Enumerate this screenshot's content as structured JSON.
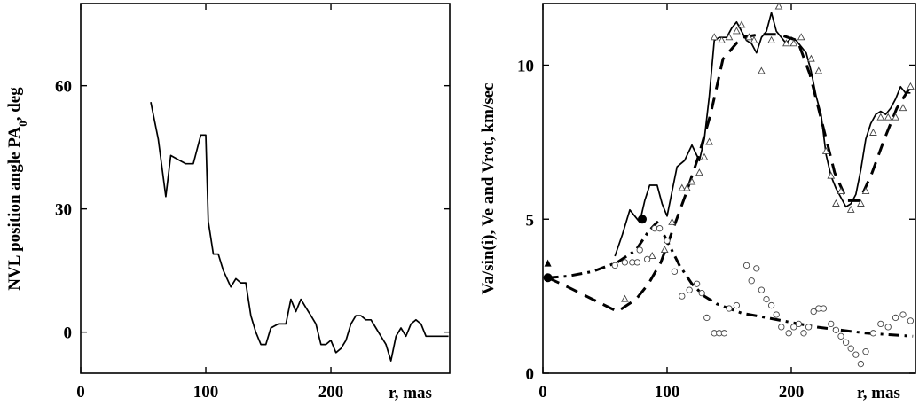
{
  "chart_data": [
    {
      "type": "line",
      "xlabel": "r, mas",
      "ylabel": "NVL position angle PA",
      "ylabel_sub": "0",
      "ylabel_tail": ", deg",
      "xlim": [
        0,
        295
      ],
      "ylim": [
        -10,
        80
      ],
      "xticks": [
        0,
        100,
        200
      ],
      "yticks": [
        0,
        30,
        60
      ],
      "series": [
        {
          "style": "solid",
          "x": [
            56,
            62,
            68,
            72,
            78,
            84,
            90,
            96,
            100,
            102,
            106,
            110,
            114,
            120,
            124,
            128,
            132,
            136,
            140,
            144,
            148,
            152,
            158,
            164,
            168,
            172,
            176,
            180,
            184,
            188,
            192,
            196,
            200,
            204,
            208,
            212,
            216,
            220,
            224,
            228,
            232,
            236,
            240,
            244,
            248,
            252,
            256,
            260,
            264,
            268,
            272,
            276,
            280,
            284,
            288,
            292,
            294
          ],
          "y": [
            56,
            47,
            33,
            43,
            42,
            41,
            41,
            48,
            48,
            27,
            19,
            19,
            15,
            11,
            13,
            12,
            12,
            4,
            0,
            -3,
            -3,
            1,
            2,
            2,
            8,
            5,
            8,
            6,
            4,
            2,
            -3,
            -3,
            -2,
            -5,
            -4,
            -2,
            2,
            4,
            4,
            3,
            3,
            1,
            -1,
            -3,
            -7,
            -1,
            1,
            -1,
            2,
            3,
            2,
            -1,
            -1,
            -1,
            -1,
            -1,
            -1
          ]
        }
      ]
    },
    {
      "type": "scatter",
      "xlabel": "r, mas",
      "ylabel": "Va/sin(i), Ve and Vrot, km/sec",
      "xlim": [
        0,
        300
      ],
      "ylim": [
        0,
        12
      ],
      "xticks": [
        0,
        100,
        200
      ],
      "yticks": [
        0,
        5,
        10
      ],
      "series": [
        {
          "marker": "line-solid",
          "x": [
            58,
            64,
            70,
            78,
            82,
            86,
            92,
            96,
            100,
            104,
            108,
            114,
            120,
            126,
            130,
            134,
            138,
            142,
            148,
            152,
            156,
            160,
            164,
            168,
            172,
            176,
            180,
            184,
            188,
            192,
            196,
            200,
            204,
            208,
            212,
            216,
            220,
            224,
            228,
            232,
            236,
            240,
            244,
            248,
            252,
            256,
            260,
            264,
            268,
            272,
            276,
            280,
            284,
            288,
            292,
            296
          ],
          "y": [
            3.8,
            4.5,
            5.3,
            4.9,
            5.6,
            6.1,
            6.1,
            5.5,
            5.1,
            5.9,
            6.7,
            6.9,
            7.4,
            6.9,
            7.6,
            9.0,
            10.8,
            10.9,
            10.9,
            11.2,
            11.4,
            11.1,
            10.8,
            10.7,
            10.4,
            10.9,
            11.1,
            11.7,
            11.1,
            10.9,
            10.7,
            10.9,
            10.8,
            10.6,
            10.4,
            9.8,
            9.0,
            8.4,
            7.1,
            6.4,
            6.0,
            5.7,
            5.4,
            5.5,
            5.8,
            6.6,
            7.6,
            8.1,
            8.4,
            8.5,
            8.4,
            8.6,
            8.9,
            9.3,
            9.1,
            9.1
          ]
        },
        {
          "marker": "line-dashed",
          "x": [
            4,
            20,
            40,
            60,
            75,
            85,
            95,
            105,
            115,
            125,
            135,
            145,
            160,
            175,
            190,
            205,
            215,
            225,
            235,
            245,
            255,
            265,
            275,
            285,
            296
          ],
          "y": [
            3.1,
            2.8,
            2.4,
            2.0,
            2.4,
            2.9,
            3.6,
            4.7,
            5.8,
            7.0,
            8.4,
            10.2,
            10.9,
            11.0,
            11.0,
            10.8,
            9.7,
            8.1,
            6.5,
            5.6,
            5.6,
            6.5,
            7.6,
            8.6,
            9.3
          ]
        },
        {
          "marker": "line-dashdot",
          "x": [
            4,
            20,
            40,
            60,
            75,
            85,
            92,
            100,
            110,
            120,
            130,
            140,
            160,
            180,
            200,
            220,
            240,
            260,
            280,
            298
          ],
          "y": [
            3.1,
            3.15,
            3.3,
            3.6,
            4.0,
            4.6,
            4.9,
            4.3,
            3.5,
            2.9,
            2.5,
            2.25,
            1.95,
            1.8,
            1.65,
            1.5,
            1.4,
            1.3,
            1.25,
            1.2
          ]
        },
        {
          "marker": "triangle-open",
          "x": [
            66,
            88,
            98,
            104,
            112,
            116,
            120,
            126,
            130,
            134,
            138,
            144,
            150,
            156,
            160,
            166,
            170,
            176,
            184,
            190,
            196,
            202,
            208,
            216,
            222,
            228,
            232,
            236,
            240,
            248,
            256,
            260,
            266,
            272,
            278,
            284,
            290,
            296
          ],
          "y": [
            2.4,
            3.8,
            4.0,
            4.9,
            6.0,
            6.0,
            6.2,
            6.5,
            7.0,
            7.5,
            10.9,
            10.8,
            10.9,
            11.1,
            11.3,
            10.9,
            10.8,
            9.8,
            10.8,
            11.9,
            10.7,
            10.7,
            10.9,
            10.2,
            9.8,
            7.2,
            6.4,
            5.5,
            5.9,
            5.3,
            5.5,
            5.9,
            7.8,
            8.3,
            8.3,
            8.3,
            8.6,
            9.3
          ]
        },
        {
          "marker": "circle-open",
          "x": [
            58,
            66,
            72,
            76,
            78,
            84,
            90,
            94,
            100,
            106,
            112,
            118,
            124,
            128,
            132,
            138,
            142,
            146,
            150,
            156,
            164,
            168,
            172,
            176,
            180,
            184,
            188,
            192,
            198,
            202,
            206,
            210,
            214,
            218,
            222,
            226,
            232,
            236,
            240,
            244,
            248,
            252,
            256,
            260,
            266,
            272,
            278,
            284,
            290,
            296
          ],
          "y": [
            3.5,
            3.6,
            3.6,
            3.6,
            4.0,
            3.7,
            4.7,
            4.7,
            4.3,
            3.3,
            2.5,
            2.7,
            2.9,
            2.6,
            1.8,
            1.3,
            1.3,
            1.3,
            2.1,
            2.2,
            3.5,
            3.0,
            3.4,
            2.7,
            2.4,
            2.2,
            1.9,
            1.5,
            1.3,
            1.5,
            1.6,
            1.3,
            1.5,
            2.0,
            2.1,
            2.1,
            1.6,
            1.4,
            1.2,
            1.0,
            0.8,
            0.6,
            0.3,
            0.7,
            1.3,
            1.6,
            1.5,
            1.8,
            1.9,
            1.7
          ]
        },
        {
          "marker": "circle-filled",
          "x": [
            4,
            80
          ],
          "y": [
            3.1,
            5.0
          ]
        },
        {
          "marker": "triangle-filled",
          "x": [
            4
          ],
          "y": [
            3.55
          ]
        }
      ]
    }
  ]
}
